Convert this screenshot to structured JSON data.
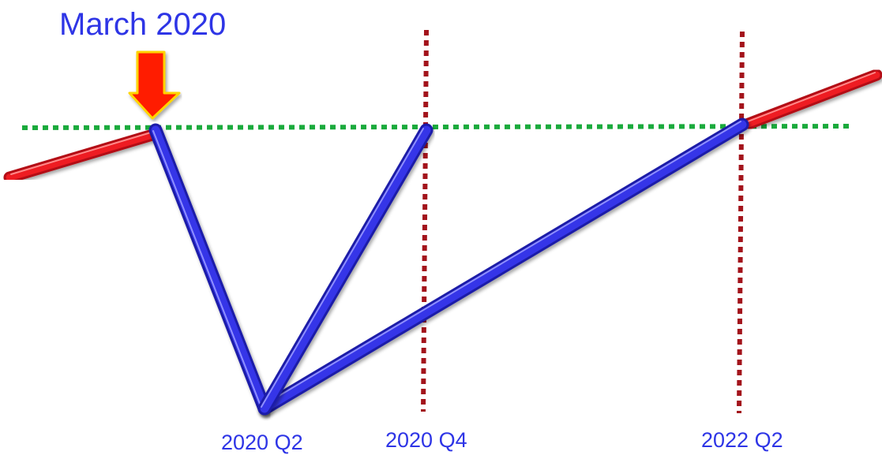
{
  "title": "March 2020",
  "ticks": {
    "q2_2020": "2020 Q2",
    "q4_2020": "2020 Q4",
    "q2_2022": "2022 Q2"
  },
  "colors": {
    "label_blue": "#2e35e6",
    "pre_post_trend": "#e0161b",
    "recovery_path": "#2f2fe0",
    "baseline": "#1aaa3c",
    "quarter_marker": "#a3131b",
    "arrow_fill": "#ff1a00",
    "arrow_outline": "#ffd400"
  },
  "icons": {
    "pointer": "down-arrow-icon"
  }
}
